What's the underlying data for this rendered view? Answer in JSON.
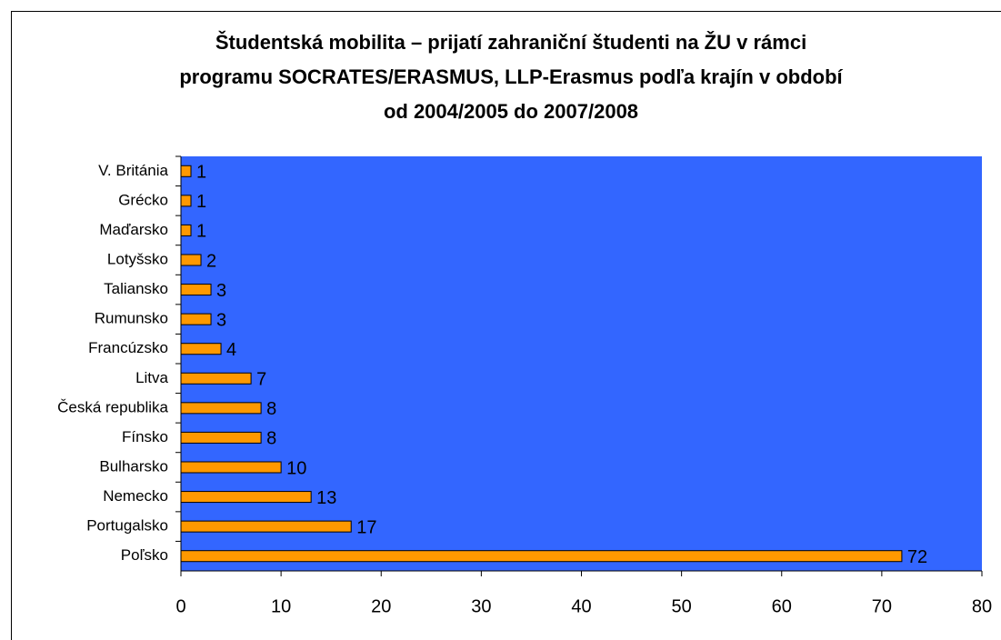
{
  "chart_data": {
    "type": "bar",
    "orientation": "horizontal",
    "title": [
      "Študentská  mobilita – prijatí zahraniční  študenti na ŽU v rámci",
      "programu SOCRATES/ERASMUS, LLP-Erasmus podľa krajín v období",
      "od 2004/2005 do 2007/2008"
    ],
    "categories": [
      "V. Británia",
      "Grécko",
      "Maďarsko",
      "Lotyšsko",
      "Taliansko",
      "Rumunsko",
      "Francúzsko",
      "Litva",
      "Česká republika",
      "Fínsko",
      "Bulharsko",
      "Nemecko",
      "Portugalsko",
      "Poľsko"
    ],
    "values": [
      1,
      1,
      1,
      2,
      3,
      3,
      4,
      7,
      8,
      8,
      10,
      13,
      17,
      72
    ],
    "color": "#ff9900",
    "plot_background": "#3366ff",
    "xlim": [
      0,
      80
    ],
    "xticks": [
      0,
      10,
      20,
      30,
      40,
      50,
      60,
      70,
      80
    ]
  }
}
